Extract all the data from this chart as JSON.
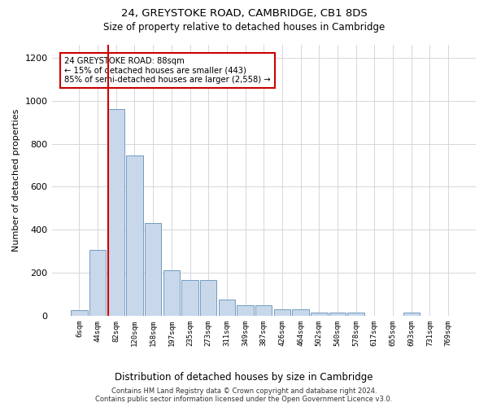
{
  "title1": "24, GREYSTOKE ROAD, CAMBRIDGE, CB1 8DS",
  "title2": "Size of property relative to detached houses in Cambridge",
  "xlabel": "Distribution of detached houses by size in Cambridge",
  "ylabel": "Number of detached properties",
  "bin_labels": [
    "6sqm",
    "44sqm",
    "82sqm",
    "120sqm",
    "158sqm",
    "197sqm",
    "235sqm",
    "273sqm",
    "311sqm",
    "349sqm",
    "387sqm",
    "426sqm",
    "464sqm",
    "502sqm",
    "540sqm",
    "578sqm",
    "617sqm",
    "655sqm",
    "693sqm",
    "731sqm",
    "769sqm"
  ],
  "bar_heights": [
    25,
    305,
    960,
    745,
    430,
    210,
    165,
    165,
    75,
    48,
    48,
    30,
    30,
    15,
    15,
    15,
    0,
    0,
    15,
    0,
    0
  ],
  "bar_color": "#c8d8ea",
  "bar_edge_color": "#6090b8",
  "annotation_text": "24 GREYSTOKE ROAD: 88sqm\n← 15% of detached houses are smaller (443)\n85% of semi-detached houses are larger (2,558) →",
  "vline_color": "#cc0000",
  "box_edge_color": "#cc0000",
  "footer1": "Contains HM Land Registry data © Crown copyright and database right 2024.",
  "footer2": "Contains public sector information licensed under the Open Government Licence v3.0.",
  "ylim": [
    0,
    1260
  ],
  "yticks": [
    0,
    200,
    400,
    600,
    800,
    1000,
    1200
  ],
  "background_color": "#ffffff",
  "grid_color": "#d0d0d8",
  "vline_bin_index": 2,
  "bar_width": 0.9
}
